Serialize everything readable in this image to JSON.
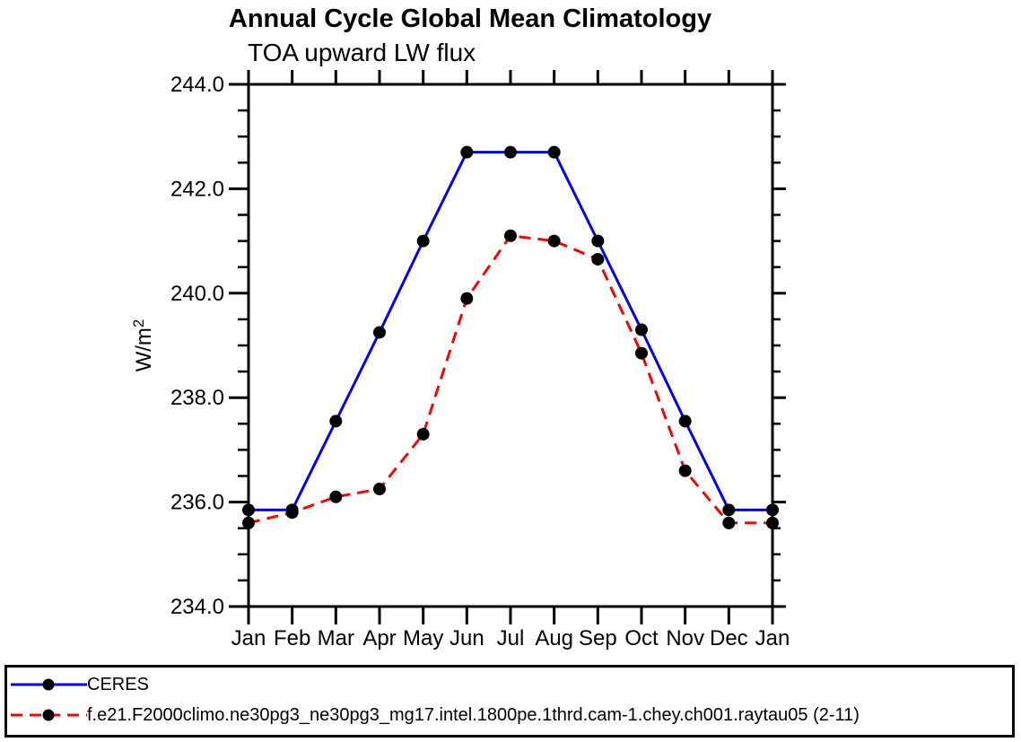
{
  "title": "Annual Cycle Global Mean Climatology",
  "subtitle": "TOA upward LW flux",
  "chart_data": {
    "type": "line",
    "title": "Annual Cycle Global Mean Climatology",
    "subtitle": "TOA upward LW flux",
    "ylabel": "W/m²",
    "xlabel": "",
    "categories": [
      "Jan",
      "Feb",
      "Mar",
      "Apr",
      "May",
      "Jun",
      "Jul",
      "Aug",
      "Sep",
      "Oct",
      "Nov",
      "Dec",
      "Jan"
    ],
    "series": [
      {
        "name": "CERES",
        "color": "#0000ff",
        "line_style": "solid",
        "marker": "filled-circle",
        "marker_color": "#000000",
        "values": [
          235.85,
          235.85,
          237.55,
          239.25,
          241.0,
          242.7,
          242.7,
          242.7,
          241.0,
          239.3,
          237.55,
          235.85,
          235.85
        ]
      },
      {
        "name": "f.e21.F2000climo.ne30pg3_ne30pg3_mg17.intel.1800pe.1thrd.cam-1.chey.ch001.raytau05 (2-11)",
        "color": "#ff0000",
        "line_style": "dashed",
        "marker": "filled-circle",
        "marker_color": "#000000",
        "values": [
          235.6,
          235.8,
          236.1,
          236.25,
          237.3,
          239.9,
          241.1,
          241.0,
          240.65,
          238.85,
          236.6,
          235.6,
          235.6
        ]
      }
    ],
    "ylim": [
      234.0,
      244.0
    ],
    "ytick_major": 2.0,
    "ytick_minor": 0.5,
    "ytick_labels": [
      "234.0",
      "236.0",
      "238.0",
      "240.0",
      "242.0",
      "244.0"
    ],
    "grid": false,
    "legend_position": "bottom",
    "axis_color": "#000000"
  },
  "legend": {
    "entries": [
      {
        "label": "CERES"
      },
      {
        "label": "f.e21.F2000climo.ne30pg3_ne30pg3_mg17.intel.1800pe.1thrd.cam-1.chey.ch001.raytau05 (2-11)"
      }
    ]
  }
}
